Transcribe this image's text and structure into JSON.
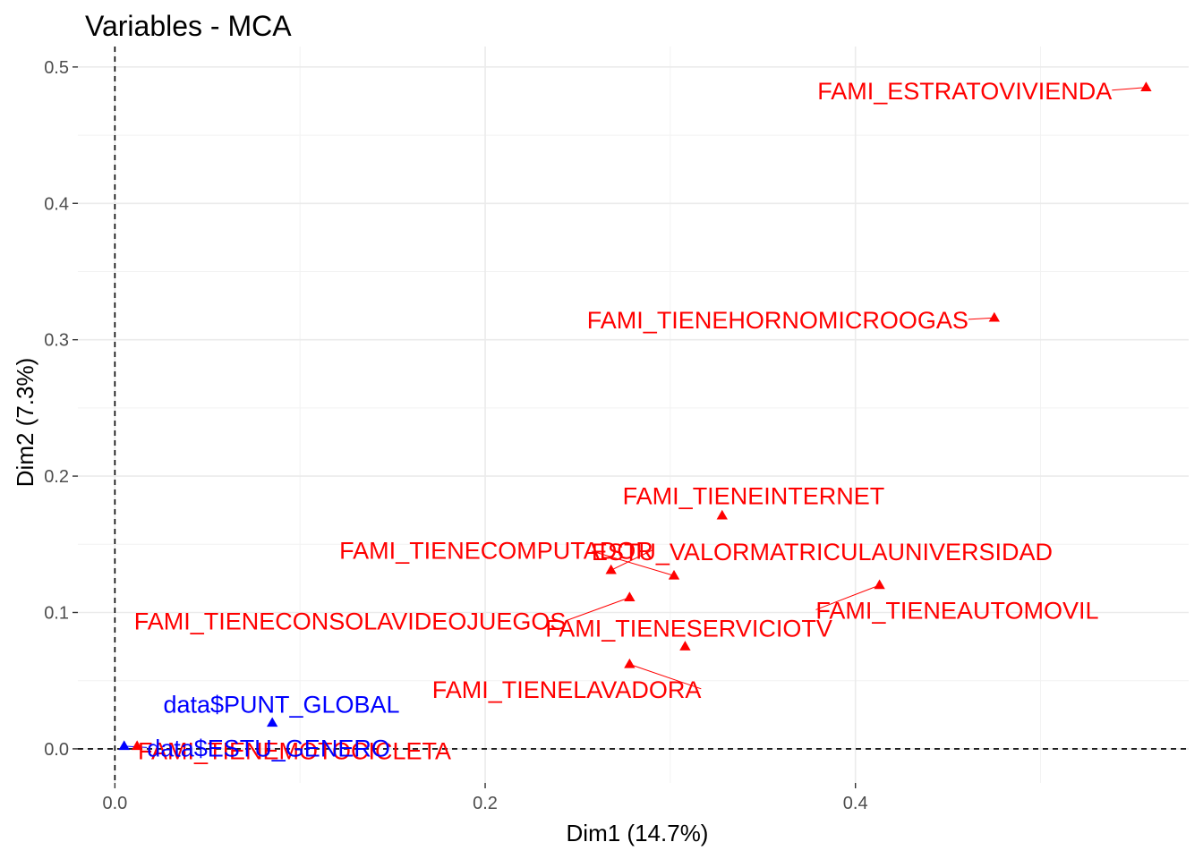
{
  "chart_data": {
    "type": "scatter",
    "title": "Variables - MCA",
    "xlabel": "Dim1 (14.7%)",
    "ylabel": "Dim2 (7.3%)",
    "xlim": [
      -0.02,
      0.58
    ],
    "ylim": [
      -0.025,
      0.515
    ],
    "x_ticks": [
      0.0,
      0.2,
      0.4
    ],
    "y_ticks": [
      0.0,
      0.1,
      0.2,
      0.3,
      0.4,
      0.5
    ],
    "x_tick_labels": [
      "0.0",
      "0.2",
      "0.4"
    ],
    "y_tick_labels": [
      "0.0",
      "0.1",
      "0.2",
      "0.3",
      "0.4",
      "0.5"
    ],
    "grid": true,
    "reference_lines": {
      "x": 0,
      "y": 0
    },
    "colors": {
      "active": "#ff0000",
      "supplementary": "#0000ff"
    },
    "points": [
      {
        "label": "FAMI_ESTRATOVIVIENDA",
        "x": 0.557,
        "y": 0.485,
        "group": "active",
        "lx": 0.459,
        "ly": 0.483
      },
      {
        "label": "FAMI_TIENEHORNOMICROOGAS",
        "x": 0.475,
        "y": 0.316,
        "group": "active",
        "lx": 0.358,
        "ly": 0.315
      },
      {
        "label": "FAMI_TIENEINTERNET",
        "x": 0.328,
        "y": 0.171,
        "group": "active",
        "lx": 0.345,
        "ly": 0.186
      },
      {
        "label": "FAMI_TIENECOMPUTADOR",
        "x": 0.268,
        "y": 0.131,
        "group": "active",
        "lx": 0.206,
        "ly": 0.146
      },
      {
        "label": "ESTU_VALORMATRICULAUNIVERSIDAD",
        "x": 0.302,
        "y": 0.127,
        "group": "active",
        "lx": 0.382,
        "ly": 0.145
      },
      {
        "label": "FAMI_TIENEAUTOMOVIL",
        "x": 0.413,
        "y": 0.12,
        "group": "active",
        "lx": 0.455,
        "ly": 0.102
      },
      {
        "label": "FAMI_TIENECONSOLAVIDEOJUEGOS",
        "x": 0.278,
        "y": 0.111,
        "group": "active",
        "lx": 0.127,
        "ly": 0.094
      },
      {
        "label": "FAMI_TIENESERVICIOTV",
        "x": 0.308,
        "y": 0.075,
        "group": "active",
        "lx": 0.31,
        "ly": 0.089
      },
      {
        "label": "FAMI_TIENELAVADORA",
        "x": 0.278,
        "y": 0.062,
        "group": "active",
        "lx": 0.244,
        "ly": 0.044
      },
      {
        "label": "FAMI_TIENEMOTOCICLETA",
        "x": 0.012,
        "y": 0.002,
        "group": "active",
        "lx": 0.097,
        "ly": -0.001
      },
      {
        "label": "data$PUNT_GLOBAL",
        "x": 0.085,
        "y": 0.019,
        "group": "supplementary",
        "lx": 0.09,
        "ly": 0.033
      },
      {
        "label": "data$ESTU_GENERO",
        "x": 0.005,
        "y": 0.002,
        "group": "supplementary",
        "lx": 0.083,
        "ly": 0.001
      }
    ]
  }
}
